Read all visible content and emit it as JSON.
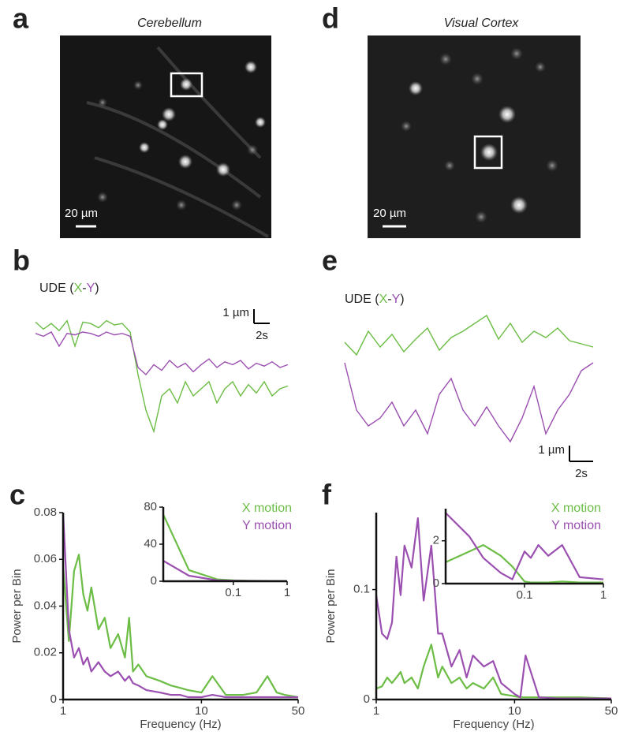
{
  "panels": {
    "a": {
      "label": "a",
      "title": "Cerebellum",
      "scalebar": "20 µm"
    },
    "b": {
      "label": "b"
    },
    "c": {
      "label": "c"
    },
    "d": {
      "label": "d",
      "title": "Visual Cortex",
      "scalebar": "20 µm"
    },
    "e": {
      "label": "e"
    },
    "f": {
      "label": "f"
    }
  },
  "chart_data": [
    {
      "type": "line",
      "label_prefix": "UDE (",
      "label_separator": "-",
      "label_suffix": ")",
      "scalebar": {
        "x": 2,
        "x_label": "2s",
        "y": 1,
        "y_label": "1 µm"
      },
      "x": [
        0,
        1,
        2,
        3,
        4,
        5,
        6,
        7,
        8,
        9,
        10,
        11,
        12,
        13,
        14,
        15,
        16,
        17,
        18,
        19,
        20,
        21,
        22,
        23,
        24,
        25,
        26,
        27,
        28,
        29,
        30,
        31,
        32
      ],
      "series": [
        {
          "name": "X",
          "color": "#6cbd45",
          "values": [
            0.2,
            -0.3,
            0.1,
            -0.4,
            0.3,
            -1.5,
            0.2,
            0.1,
            -0.2,
            0.3,
            0.0,
            0.1,
            -0.5,
            -3.5,
            -6,
            -7.5,
            -5,
            -4.5,
            -5.5,
            -4,
            -5,
            -4.5,
            -4,
            -5.5,
            -4.5,
            -4,
            -5,
            -4.2,
            -4.8,
            -4,
            -5,
            -4.5,
            -4.3
          ]
        },
        {
          "name": "Y",
          "color": "#9b4fb0",
          "values": [
            -0.6,
            -0.8,
            -0.5,
            -1.5,
            -0.6,
            -0.7,
            -0.5,
            -0.6,
            -0.8,
            -0.5,
            -0.7,
            -0.6,
            -0.8,
            -3,
            -3.5,
            -2.8,
            -3.2,
            -2.5,
            -3,
            -2.7,
            -3.3,
            -2.8,
            -2.4,
            -3,
            -2.6,
            -2.8,
            -2.5,
            -3.1,
            -2.7,
            -2.9,
            -2.6,
            -3,
            -2.8
          ]
        }
      ]
    },
    {
      "type": "line",
      "label_prefix": "UDE (",
      "label_separator": "-",
      "label_suffix": ")",
      "scalebar": {
        "x": 2,
        "x_label": "2s",
        "y": 1,
        "y_label": "1 µm"
      },
      "x": [
        0,
        1,
        2,
        3,
        4,
        5,
        6,
        7,
        8,
        9,
        10,
        11,
        12,
        13,
        14,
        15,
        16,
        17,
        18,
        19,
        20,
        21
      ],
      "series": [
        {
          "name": "X",
          "color": "#6cbd45",
          "values": [
            0.3,
            -0.5,
            1,
            0,
            0.8,
            -0.3,
            0.5,
            1.2,
            -0.2,
            0.6,
            1,
            1.5,
            2,
            0.5,
            1.5,
            0.3,
            1,
            0.6,
            1.2,
            0.4,
            0.2,
            0
          ]
        },
        {
          "name": "Y",
          "color": "#9b4fb0",
          "values": [
            -1,
            -4,
            -5,
            -4.5,
            -3.5,
            -5,
            -4,
            -5.5,
            -3,
            -2,
            -4,
            -5,
            -3.8,
            -5,
            -6,
            -4.5,
            -2.5,
            -5.5,
            -4,
            -3,
            -1.5,
            -1
          ]
        }
      ]
    },
    {
      "type": "line",
      "xlabel": "Frequency (Hz)",
      "ylabel": "Power per Bin",
      "xscale": "log",
      "xlim": [
        1,
        50
      ],
      "ylim": [
        0,
        0.08
      ],
      "xticks": [
        1,
        10,
        50
      ],
      "yticks": [
        0,
        0.02,
        0.04,
        0.06,
        0.08
      ],
      "x": [
        1,
        1.1,
        1.2,
        1.3,
        1.4,
        1.5,
        1.6,
        1.8,
        2,
        2.2,
        2.5,
        2.8,
        3,
        3.2,
        3.5,
        4,
        5,
        6,
        7,
        8,
        10,
        12,
        15,
        20,
        25,
        30,
        35,
        40,
        50
      ],
      "series": [
        {
          "name": "X motion",
          "color": "#6cbd45",
          "values": [
            0.057,
            0.025,
            0.055,
            0.062,
            0.045,
            0.038,
            0.048,
            0.03,
            0.035,
            0.022,
            0.028,
            0.018,
            0.035,
            0.012,
            0.015,
            0.01,
            0.008,
            0.006,
            0.005,
            0.004,
            0.003,
            0.01,
            0.002,
            0.002,
            0.003,
            0.01,
            0.003,
            0.002,
            0.001
          ]
        },
        {
          "name": "Y motion",
          "color": "#9b4fb0",
          "values": [
            0.08,
            0.03,
            0.018,
            0.022,
            0.015,
            0.018,
            0.012,
            0.016,
            0.012,
            0.01,
            0.012,
            0.008,
            0.01,
            0.007,
            0.006,
            0.004,
            0.003,
            0.002,
            0.002,
            0.001,
            0.001,
            0.002,
            0.001,
            0.001,
            0.001,
            0.001,
            0.001,
            0.001,
            0.001
          ]
        }
      ]
    },
    {
      "type": "line",
      "xscale": "log",
      "xlim": [
        0.005,
        1
      ],
      "ylim": [
        0,
        80
      ],
      "xticks": [
        0.1,
        1
      ],
      "yticks": [
        0,
        40,
        80
      ],
      "x": [
        0.005,
        0.015,
        0.05,
        0.1,
        0.2,
        0.5,
        1
      ],
      "series": [
        {
          "color": "#6cbd45",
          "values": [
            72,
            12,
            2,
            1,
            0.5,
            0.3,
            0.2
          ]
        },
        {
          "color": "#9b4fb0",
          "values": [
            22,
            6,
            1,
            0.5,
            0.3,
            0.2,
            0.1
          ]
        }
      ]
    },
    {
      "type": "line",
      "xlabel": "Frequency (Hz)",
      "ylabel": "Power per Bin",
      "xscale": "log",
      "xlim": [
        1,
        50
      ],
      "ylim": [
        0,
        0.17
      ],
      "xticks": [
        1,
        10,
        50
      ],
      "yticks": [
        0,
        0.1
      ],
      "x": [
        1,
        1.1,
        1.2,
        1.3,
        1.4,
        1.5,
        1.6,
        1.8,
        2,
        2.2,
        2.5,
        2.8,
        3,
        3.5,
        4,
        4.5,
        5,
        6,
        7,
        8,
        10,
        11,
        12,
        15,
        20,
        30,
        50
      ],
      "series": [
        {
          "name": "X motion",
          "color": "#6cbd45",
          "values": [
            0.01,
            0.012,
            0.02,
            0.015,
            0.02,
            0.025,
            0.015,
            0.02,
            0.01,
            0.03,
            0.05,
            0.02,
            0.03,
            0.015,
            0.02,
            0.01,
            0.015,
            0.01,
            0.02,
            0.005,
            0.003,
            0.002,
            0.002,
            0.002,
            0.002,
            0.002,
            0.001
          ]
        },
        {
          "name": "Y motion",
          "color": "#9b4fb0",
          "values": [
            0.095,
            0.06,
            0.055,
            0.07,
            0.13,
            0.095,
            0.14,
            0.12,
            0.165,
            0.09,
            0.14,
            0.06,
            0.06,
            0.03,
            0.045,
            0.02,
            0.04,
            0.03,
            0.035,
            0.015,
            0.005,
            0.002,
            0.04,
            0.002,
            0.001,
            0.001,
            0.001
          ]
        }
      ]
    },
    {
      "type": "line",
      "xscale": "log",
      "xlim": [
        0.01,
        1
      ],
      "ylim": [
        0,
        3.5
      ],
      "xticks": [
        0.1,
        1
      ],
      "yticks": [
        0,
        2
      ],
      "x": [
        0.01,
        0.02,
        0.03,
        0.05,
        0.07,
        0.1,
        0.12,
        0.15,
        0.2,
        0.3,
        0.5,
        1
      ],
      "series": [
        {
          "color": "#6cbd45",
          "values": [
            1,
            1.5,
            1.8,
            1.3,
            0.8,
            0.1,
            0.05,
            0.05,
            0.05,
            0.1,
            0.05,
            0.05
          ]
        },
        {
          "color": "#9b4fb0",
          "values": [
            3.3,
            2.2,
            1.2,
            0.5,
            0.2,
            1.5,
            1.2,
            1.8,
            1.3,
            1.8,
            0.3,
            0.2
          ]
        }
      ]
    }
  ]
}
